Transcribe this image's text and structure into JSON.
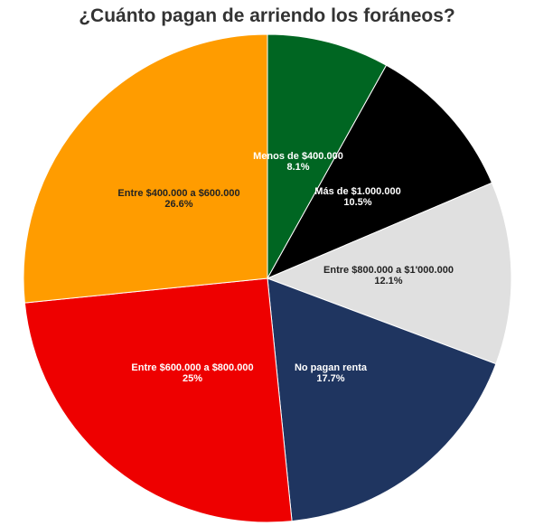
{
  "chart_data": {
    "type": "pie",
    "title": "¿Cuánto pagan de arriendo los foráneos?",
    "slices": [
      {
        "label": "Menos de $400.000",
        "value_label": "8.1%",
        "value": 8.1,
        "color": "#006622",
        "text_color": "#ffffff"
      },
      {
        "label": "Más de $1.000.000",
        "value_label": "10.5%",
        "value": 10.5,
        "color": "#000000",
        "text_color": "#ffffff"
      },
      {
        "label": "Entre $800.000 a $1'000.000",
        "value_label": "12.1%",
        "value": 12.1,
        "color": "#e0e0e0",
        "text_color": "#222222"
      },
      {
        "label": "No pagan renta",
        "value_label": "17.7%",
        "value": 17.7,
        "color": "#1f3560",
        "text_color": "#ffffff"
      },
      {
        "label": "Entre $600.000 a $800.000",
        "value_label": "25%",
        "value": 25,
        "color": "#ee0000",
        "text_color": "#ffffff"
      },
      {
        "label": "Entre $400.000 a $600.000",
        "value_label": "26.6%",
        "value": 26.6,
        "color": "#ff9c00",
        "text_color": "#222222"
      }
    ],
    "start_angle": "12 o'clock",
    "direction": "clockwise",
    "legend": "none"
  }
}
